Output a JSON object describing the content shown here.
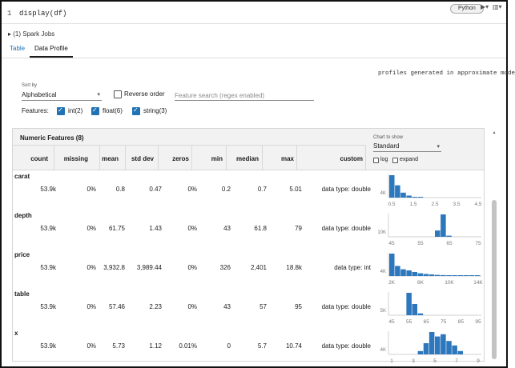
{
  "cell": {
    "line_number": "1",
    "code": "display(df)",
    "language": "Python"
  },
  "spark_jobs": "(1) Spark Jobs",
  "tabs": [
    {
      "label": "Table"
    },
    {
      "label": "Data Profile"
    }
  ],
  "approx_note": "profiles generated in approximate mode",
  "sort": {
    "label": "Sort by",
    "value": "Alphabetical"
  },
  "reverse_order": {
    "label": "Reverse order",
    "checked": false
  },
  "search": {
    "placeholder": "Feature search (regex enabled)"
  },
  "features": {
    "label": "Features:",
    "types": [
      {
        "label": "int(2)",
        "checked": true
      },
      {
        "label": "float(6)",
        "checked": true
      },
      {
        "label": "string(3)",
        "checked": true
      }
    ]
  },
  "panel": {
    "title": "Numeric Features (8)",
    "columns": [
      "count",
      "missing",
      "mean",
      "std dev",
      "zeros",
      "min",
      "median",
      "max",
      "custom"
    ],
    "chart_to_show": {
      "label": "Chart to show",
      "value": "Standard"
    },
    "options": [
      {
        "label": "log",
        "checked": false
      },
      {
        "label": "expand",
        "checked": false
      }
    ]
  },
  "rows": [
    {
      "name": "carat",
      "cells": [
        "53.9k",
        "0%",
        "0.8",
        "0.47",
        "0%",
        "0.2",
        "0.7",
        "5.01",
        "data type: double"
      ],
      "hist": {
        "ylabel": "4K",
        "xticks": [
          "0.5",
          "1.5",
          "2.5",
          "3.5",
          "4.5"
        ],
        "bars": [
          1.0,
          0.55,
          0.22,
          0.09,
          0.02,
          0.01,
          0,
          0,
          0,
          0,
          0,
          0,
          0,
          0,
          0,
          0
        ]
      }
    },
    {
      "name": "depth",
      "cells": [
        "53.9k",
        "0%",
        "61.75",
        "1.43",
        "0%",
        "43",
        "61.8",
        "79",
        "data type: double"
      ],
      "hist": {
        "ylabel": "10K",
        "xticks": [
          "45",
          "55",
          "65",
          "75"
        ],
        "bars": [
          0,
          0,
          0,
          0,
          0,
          0,
          0,
          0,
          0.28,
          1.0,
          0.05,
          0,
          0,
          0,
          0,
          0
        ]
      }
    },
    {
      "name": "price",
      "cells": [
        "53.9k",
        "0%",
        "3,932.8",
        "3,989.44",
        "0%",
        "326",
        "2,401",
        "18.8k",
        "data type: int"
      ],
      "hist": {
        "ylabel": "4K",
        "xticks": [
          "2K",
          "6K",
          "10K",
          "14K"
        ],
        "bars": [
          1.0,
          0.45,
          0.3,
          0.25,
          0.18,
          0.12,
          0.09,
          0.07,
          0.05,
          0.04,
          0.03,
          0.03,
          0.02,
          0.02,
          0.01,
          0.01
        ]
      }
    },
    {
      "name": "table",
      "cells": [
        "53.9k",
        "0%",
        "57.46",
        "2.23",
        "0%",
        "43",
        "57",
        "95",
        "data type: double"
      ],
      "hist": {
        "ylabel": "5K",
        "xticks": [
          "45",
          "55",
          "65",
          "75",
          "85",
          "95"
        ],
        "bars": [
          0,
          0,
          0,
          1.0,
          0.5,
          0.08,
          0,
          0,
          0,
          0,
          0,
          0,
          0,
          0,
          0,
          0
        ]
      }
    },
    {
      "name": "x",
      "cells": [
        "53.9k",
        "0%",
        "5.73",
        "1.12",
        "0.01%",
        "0",
        "5.7",
        "10.74",
        "data type: double"
      ],
      "hist": {
        "ylabel": "4K",
        "xticks": [
          "1",
          "3",
          "5",
          "7",
          "9"
        ],
        "bars": [
          0,
          0,
          0,
          0,
          0,
          0.15,
          0.5,
          1.0,
          0.8,
          0.9,
          0.6,
          0.4,
          0.15,
          0,
          0,
          0
        ]
      }
    }
  ],
  "colors": {
    "accent": "#2272b4",
    "bar": "#2d77bc"
  }
}
